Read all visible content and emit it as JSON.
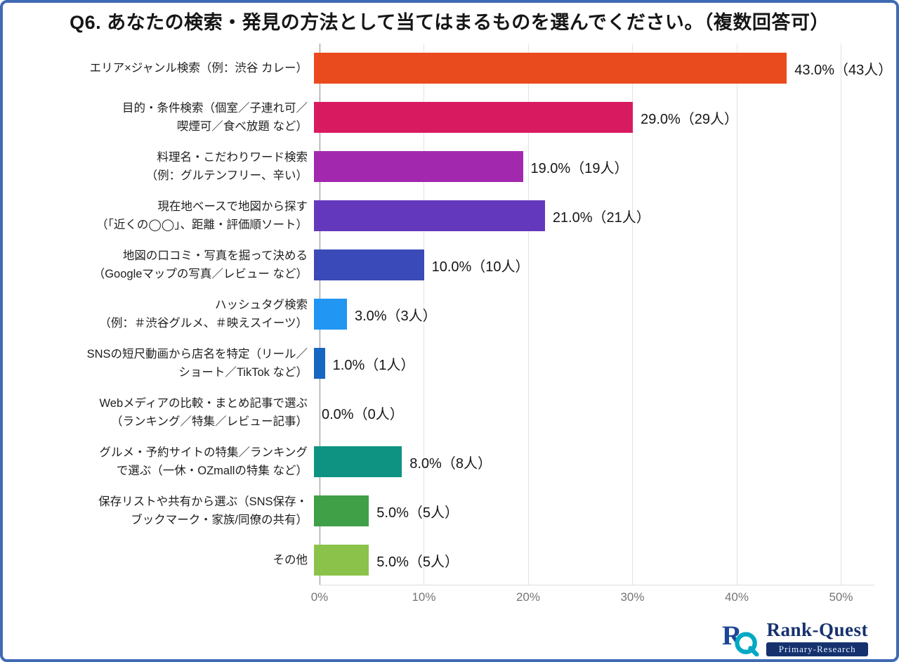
{
  "title": "Q6. あなたの検索・発見の方法として当てはまるものを選んでください。（複数回答可）",
  "chart_data": {
    "type": "bar",
    "orientation": "horizontal",
    "title": "Q6. あなたの検索・発見の方法として当てはまるものを選んでください。（複数回答可）",
    "xlabel": "",
    "ylabel": "",
    "xlim": [
      0,
      53.2
    ],
    "grid": true,
    "x_ticks": [
      {
        "value": 0,
        "label": "0%"
      },
      {
        "value": 10,
        "label": "10%"
      },
      {
        "value": 20,
        "label": "20%"
      },
      {
        "value": 30,
        "label": "30%"
      },
      {
        "value": 40,
        "label": "40%"
      },
      {
        "value": 50,
        "label": "50%"
      }
    ],
    "rows": [
      {
        "label_lines": [
          "エリア×ジャンル検索（例：渋谷 カレー）"
        ],
        "value": 43.0,
        "count": 43,
        "value_label": "43.0%（43人）",
        "color": "#ea4b1e"
      },
      {
        "label_lines": [
          "目的・条件検索（個室／子連れ可／",
          "喫煙可／食べ放題 など）"
        ],
        "value": 29.0,
        "count": 29,
        "value_label": "29.0%（29人）",
        "color": "#d81a60"
      },
      {
        "label_lines": [
          "料理名・こだわりワード検索",
          "（例：グルテンフリー、辛い）"
        ],
        "value": 19.0,
        "count": 19,
        "value_label": "19.0%（19人）",
        "color": "#a228ae"
      },
      {
        "label_lines": [
          "現在地ベースで地図から探す",
          "（「近くの◯◯」、距離・評価順ソート）"
        ],
        "value": 21.0,
        "count": 21,
        "value_label": "21.0%（21人）",
        "color": "#6438bd"
      },
      {
        "label_lines": [
          "地図の口コミ・写真を掘って決める",
          "（Googleマップの写真／レビュー など）"
        ],
        "value": 10.0,
        "count": 10,
        "value_label": "10.0%（10人）",
        "color": "#3a4ab8"
      },
      {
        "label_lines": [
          "ハッシュタグ検索",
          "（例：＃渋谷グルメ、＃映えスイーツ）"
        ],
        "value": 3.0,
        "count": 3,
        "value_label": "3.0%（3人）",
        "color": "#2196f3"
      },
      {
        "label_lines": [
          "SNSの短尺動画から店名を特定（リール／",
          "ショート／TikTok など）"
        ],
        "value": 1.0,
        "count": 1,
        "value_label": "1.0%（1人）",
        "color": "#1667c1"
      },
      {
        "label_lines": [
          "Webメディアの比較・まとめ記事で選ぶ",
          "（ランキング／特集／レビュー記事）"
        ],
        "value": 0.0,
        "count": 0,
        "value_label": "0.0%（0人）",
        "color": "#26c6da"
      },
      {
        "label_lines": [
          "グルメ・予約サイトの特集／ランキング",
          "で選ぶ（一休・OZmallの特集 など）"
        ],
        "value": 8.0,
        "count": 8,
        "value_label": "8.0%（8人）",
        "color": "#0e9382"
      },
      {
        "label_lines": [
          "保存リストや共有から選ぶ（SNS保存・",
          "ブックマーク・家族/同僚の共有）"
        ],
        "value": 5.0,
        "count": 5,
        "value_label": "5.0%（5人）",
        "color": "#3fa047"
      },
      {
        "label_lines": [
          "その他"
        ],
        "value": 5.0,
        "count": 5,
        "value_label": "5.0%（5人）",
        "color": "#8bc34a"
      }
    ]
  },
  "logo": {
    "brand": "Rank-Quest",
    "sub": "Primary-Research",
    "mark_letter_r_color": "#1c4596",
    "mark_letter_q_color": "#00a9c4"
  }
}
